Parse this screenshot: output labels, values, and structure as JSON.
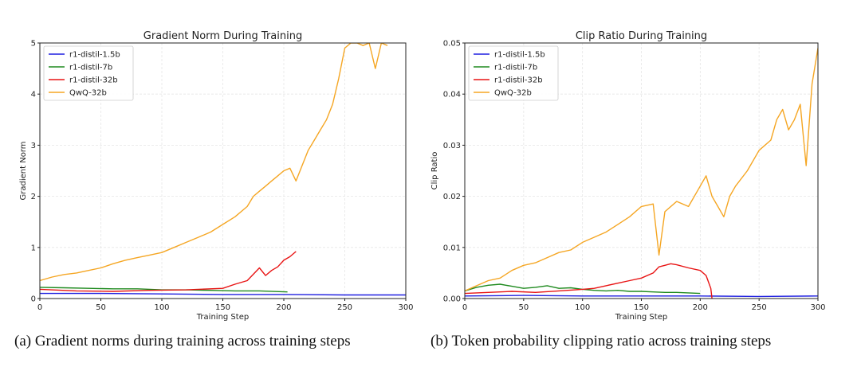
{
  "chart_data": [
    {
      "type": "line",
      "title": "Gradient Norm During Training",
      "xlabel": "Training Step",
      "ylabel": "Gradient Norm",
      "xlim": [
        0,
        300
      ],
      "ylim": [
        0,
        5
      ],
      "xticks": [
        "0",
        "50",
        "100",
        "150",
        "200",
        "250",
        "300"
      ],
      "yticks": [
        "0",
        "1",
        "2",
        "3",
        "4",
        "5"
      ],
      "grid": true,
      "legend": "top-left",
      "series": [
        {
          "name": "r1-distil-1.5b",
          "color": "#1f1fe0",
          "x": [
            0,
            50,
            100,
            150,
            200,
            250,
            300
          ],
          "y": [
            0.1,
            0.1,
            0.09,
            0.08,
            0.08,
            0.07,
            0.07
          ]
        },
        {
          "name": "r1-distil-7b",
          "color": "#1e8a1e",
          "x": [
            0,
            20,
            40,
            60,
            80,
            100,
            120,
            140,
            160,
            180,
            203
          ],
          "y": [
            0.22,
            0.21,
            0.2,
            0.19,
            0.19,
            0.17,
            0.17,
            0.16,
            0.15,
            0.15,
            0.13
          ]
        },
        {
          "name": "r1-distil-32b",
          "color": "#e81414",
          "x": [
            0,
            30,
            60,
            90,
            120,
            150,
            160,
            170,
            180,
            185,
            190,
            195,
            200,
            205,
            210
          ],
          "y": [
            0.18,
            0.15,
            0.14,
            0.16,
            0.17,
            0.2,
            0.28,
            0.35,
            0.6,
            0.45,
            0.55,
            0.62,
            0.75,
            0.82,
            0.92
          ]
        },
        {
          "name": "QwQ-32b",
          "color": "#f5a623",
          "x": [
            0,
            10,
            20,
            30,
            40,
            50,
            60,
            70,
            80,
            90,
            100,
            110,
            120,
            130,
            140,
            150,
            160,
            170,
            175,
            180,
            185,
            190,
            195,
            200,
            205,
            210,
            215,
            220,
            225,
            230,
            235,
            240,
            245,
            250,
            255,
            260,
            265,
            270,
            275,
            280,
            285
          ],
          "y": [
            0.35,
            0.42,
            0.47,
            0.5,
            0.55,
            0.6,
            0.68,
            0.75,
            0.8,
            0.85,
            0.9,
            1.0,
            1.1,
            1.2,
            1.3,
            1.45,
            1.6,
            1.8,
            2.0,
            2.1,
            2.2,
            2.3,
            2.4,
            2.5,
            2.55,
            2.3,
            2.6,
            2.9,
            3.1,
            3.3,
            3.5,
            3.8,
            4.3,
            4.9,
            5.0,
            5.0,
            4.95,
            5.0,
            4.5,
            5.0,
            4.95
          ]
        }
      ]
    },
    {
      "type": "line",
      "title": "Clip Ratio During Training",
      "xlabel": "Training Step",
      "ylabel": "Clip Ratio",
      "xlim": [
        0,
        300
      ],
      "ylim": [
        0,
        0.05
      ],
      "xticks": [
        "0",
        "50",
        "100",
        "150",
        "200",
        "250",
        "300"
      ],
      "yticks": [
        "0.00",
        "0.01",
        "0.02",
        "0.03",
        "0.04",
        "0.05"
      ],
      "grid": true,
      "legend": "top-left",
      "series": [
        {
          "name": "r1-distil-1.5b",
          "color": "#1f1fe0",
          "x": [
            0,
            50,
            100,
            150,
            200,
            250,
            300
          ],
          "y": [
            0.0005,
            0.0006,
            0.0005,
            0.0005,
            0.0005,
            0.0004,
            0.0005
          ]
        },
        {
          "name": "r1-distil-7b",
          "color": "#1e8a1e",
          "x": [
            0,
            10,
            20,
            30,
            40,
            50,
            60,
            70,
            80,
            90,
            100,
            110,
            120,
            130,
            140,
            150,
            160,
            170,
            180,
            190,
            200
          ],
          "y": [
            0.0015,
            0.0022,
            0.0026,
            0.0028,
            0.0024,
            0.002,
            0.0022,
            0.0025,
            0.002,
            0.0021,
            0.0018,
            0.0016,
            0.0015,
            0.0016,
            0.0014,
            0.0014,
            0.0013,
            0.0012,
            0.0012,
            0.0011,
            0.001
          ]
        },
        {
          "name": "r1-distil-32b",
          "color": "#e81414",
          "x": [
            0,
            20,
            40,
            60,
            80,
            100,
            110,
            120,
            130,
            140,
            150,
            160,
            165,
            170,
            175,
            180,
            190,
            200,
            205,
            209,
            210
          ],
          "y": [
            0.001,
            0.0012,
            0.0014,
            0.0012,
            0.0015,
            0.0018,
            0.002,
            0.0025,
            0.003,
            0.0035,
            0.004,
            0.005,
            0.0062,
            0.0065,
            0.0068,
            0.0066,
            0.006,
            0.0055,
            0.0045,
            0.002,
            0.0
          ]
        },
        {
          "name": "QwQ-32b",
          "color": "#f5a623",
          "x": [
            0,
            10,
            20,
            30,
            40,
            50,
            60,
            70,
            80,
            90,
            100,
            110,
            120,
            130,
            140,
            150,
            160,
            165,
            170,
            180,
            190,
            200,
            205,
            210,
            215,
            220,
            225,
            230,
            240,
            250,
            260,
            265,
            270,
            275,
            280,
            285,
            290,
            295,
            300
          ],
          "y": [
            0.0015,
            0.0025,
            0.0035,
            0.004,
            0.0055,
            0.0065,
            0.007,
            0.008,
            0.009,
            0.0095,
            0.011,
            0.012,
            0.013,
            0.0145,
            0.016,
            0.018,
            0.0185,
            0.0085,
            0.017,
            0.019,
            0.018,
            0.022,
            0.024,
            0.02,
            0.018,
            0.016,
            0.02,
            0.022,
            0.025,
            0.029,
            0.031,
            0.035,
            0.037,
            0.033,
            0.035,
            0.038,
            0.026,
            0.042,
            0.049
          ]
        }
      ]
    }
  ],
  "captions": {
    "a": "(a) Gradient norms during training across training steps",
    "b": "(b) Token probability clipping ratio across training steps"
  }
}
